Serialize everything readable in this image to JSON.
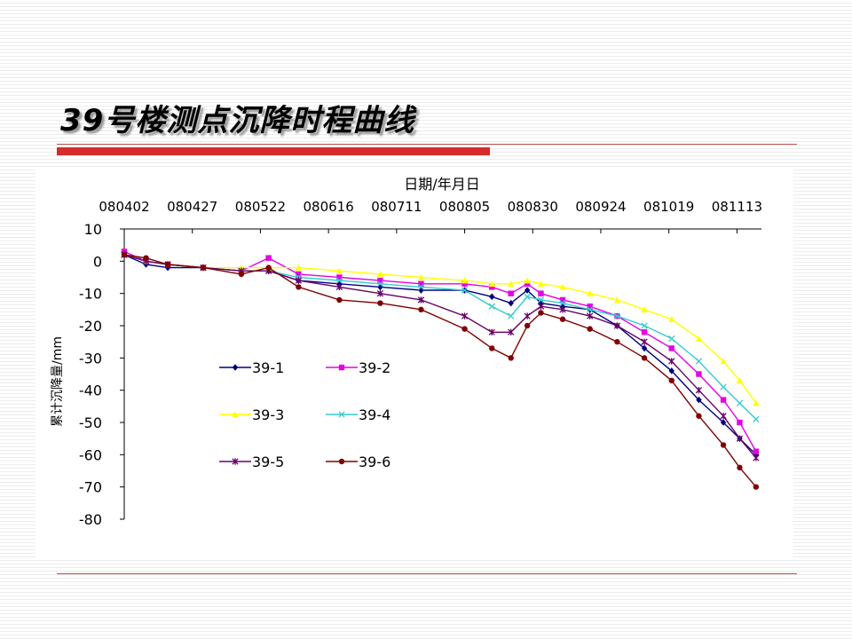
{
  "slide": {
    "title": "39号楼测点沉降时程曲线"
  },
  "chart_data": {
    "type": "line",
    "xlabel": "日期/年月日",
    "ylabel": "累计沉降量/mm",
    "x_axis_position": "top",
    "x_tick_labels": [
      "080402",
      "080427",
      "080522",
      "080616",
      "080711",
      "080805",
      "080830",
      "080924",
      "081019",
      "081113"
    ],
    "x_range": [
      "2008-04-02",
      "2008-11-22"
    ],
    "y_ticks": [
      10,
      0,
      -10,
      -20,
      -30,
      -40,
      -50,
      -60,
      -70,
      -80
    ],
    "ylim": [
      -80,
      10
    ],
    "legend_position": "inside-left",
    "series": [
      {
        "name": "39-1",
        "color": "#000080",
        "marker": "diamond",
        "points": [
          [
            "2008-04-02",
            2
          ],
          [
            "2008-04-10",
            -1
          ],
          [
            "2008-04-18",
            -2
          ],
          [
            "2008-05-01",
            -2
          ],
          [
            "2008-05-15",
            -3
          ],
          [
            "2008-05-25",
            -3
          ],
          [
            "2008-06-05",
            -6
          ],
          [
            "2008-06-20",
            -7
          ],
          [
            "2008-07-05",
            -8
          ],
          [
            "2008-07-20",
            -9
          ],
          [
            "2008-08-05",
            -9
          ],
          [
            "2008-08-15",
            -11
          ],
          [
            "2008-08-22",
            -13
          ],
          [
            "2008-08-28",
            -9
          ],
          [
            "2008-09-02",
            -13
          ],
          [
            "2008-09-10",
            -14
          ],
          [
            "2008-09-20",
            -15
          ],
          [
            "2008-09-30",
            -20
          ],
          [
            "2008-10-10",
            -27
          ],
          [
            "2008-10-20",
            -34
          ],
          [
            "2008-10-30",
            -43
          ],
          [
            "2008-11-08",
            -50
          ],
          [
            "2008-11-14",
            -55
          ],
          [
            "2008-11-20",
            -60
          ]
        ]
      },
      {
        "name": "39-2",
        "color": "#e600e6",
        "marker": "square",
        "points": [
          [
            "2008-04-02",
            3
          ],
          [
            "2008-04-10",
            0
          ],
          [
            "2008-04-18",
            -1
          ],
          [
            "2008-05-01",
            -2
          ],
          [
            "2008-05-15",
            -3
          ],
          [
            "2008-05-25",
            1
          ],
          [
            "2008-06-05",
            -4
          ],
          [
            "2008-06-20",
            -5
          ],
          [
            "2008-07-05",
            -6
          ],
          [
            "2008-07-20",
            -7
          ],
          [
            "2008-08-05",
            -7
          ],
          [
            "2008-08-15",
            -8
          ],
          [
            "2008-08-22",
            -10
          ],
          [
            "2008-08-28",
            -7
          ],
          [
            "2008-09-02",
            -10
          ],
          [
            "2008-09-10",
            -12
          ],
          [
            "2008-09-20",
            -14
          ],
          [
            "2008-09-30",
            -17
          ],
          [
            "2008-10-10",
            -22
          ],
          [
            "2008-10-20",
            -27
          ],
          [
            "2008-10-30",
            -35
          ],
          [
            "2008-11-08",
            -43
          ],
          [
            "2008-11-14",
            -50
          ],
          [
            "2008-11-20",
            -59
          ]
        ]
      },
      {
        "name": "39-3",
        "color": "#ffff00",
        "marker": "triangle",
        "points": [
          [
            "2008-04-02",
            2
          ],
          [
            "2008-04-10",
            0
          ],
          [
            "2008-04-18",
            -1
          ],
          [
            "2008-05-01",
            -2
          ],
          [
            "2008-05-15",
            -2
          ],
          [
            "2008-05-25",
            -2
          ],
          [
            "2008-06-05",
            -2
          ],
          [
            "2008-06-20",
            -3
          ],
          [
            "2008-07-05",
            -4
          ],
          [
            "2008-07-20",
            -5
          ],
          [
            "2008-08-05",
            -6
          ],
          [
            "2008-08-15",
            -7
          ],
          [
            "2008-08-22",
            -7
          ],
          [
            "2008-08-28",
            -6
          ],
          [
            "2008-09-02",
            -7
          ],
          [
            "2008-09-10",
            -8
          ],
          [
            "2008-09-20",
            -10
          ],
          [
            "2008-09-30",
            -12
          ],
          [
            "2008-10-10",
            -15
          ],
          [
            "2008-10-20",
            -18
          ],
          [
            "2008-10-30",
            -24
          ],
          [
            "2008-11-08",
            -31
          ],
          [
            "2008-11-14",
            -37
          ],
          [
            "2008-11-20",
            -44
          ]
        ]
      },
      {
        "name": "39-4",
        "color": "#33cccc",
        "marker": "x",
        "points": [
          [
            "2008-04-02",
            2
          ],
          [
            "2008-04-10",
            0
          ],
          [
            "2008-04-18",
            -1
          ],
          [
            "2008-05-01",
            -2
          ],
          [
            "2008-05-15",
            -3
          ],
          [
            "2008-05-25",
            -3
          ],
          [
            "2008-06-05",
            -5
          ],
          [
            "2008-06-20",
            -6
          ],
          [
            "2008-07-05",
            -7
          ],
          [
            "2008-07-20",
            -8
          ],
          [
            "2008-08-05",
            -9
          ],
          [
            "2008-08-15",
            -14
          ],
          [
            "2008-08-22",
            -17
          ],
          [
            "2008-08-28",
            -11
          ],
          [
            "2008-09-02",
            -12
          ],
          [
            "2008-09-10",
            -13
          ],
          [
            "2008-09-20",
            -15
          ],
          [
            "2008-09-30",
            -17
          ],
          [
            "2008-10-10",
            -20
          ],
          [
            "2008-10-20",
            -24
          ],
          [
            "2008-10-30",
            -31
          ],
          [
            "2008-11-08",
            -39
          ],
          [
            "2008-11-14",
            -44
          ],
          [
            "2008-11-20",
            -49
          ]
        ]
      },
      {
        "name": "39-5",
        "color": "#660066",
        "marker": "star",
        "points": [
          [
            "2008-04-02",
            2
          ],
          [
            "2008-04-10",
            0
          ],
          [
            "2008-04-18",
            -1
          ],
          [
            "2008-05-01",
            -2
          ],
          [
            "2008-05-15",
            -3
          ],
          [
            "2008-05-25",
            -3
          ],
          [
            "2008-06-05",
            -6
          ],
          [
            "2008-06-20",
            -8
          ],
          [
            "2008-07-05",
            -10
          ],
          [
            "2008-07-20",
            -12
          ],
          [
            "2008-08-05",
            -17
          ],
          [
            "2008-08-15",
            -22
          ],
          [
            "2008-08-22",
            -22
          ],
          [
            "2008-08-28",
            -17
          ],
          [
            "2008-09-02",
            -14
          ],
          [
            "2008-09-10",
            -15
          ],
          [
            "2008-09-20",
            -17
          ],
          [
            "2008-09-30",
            -20
          ],
          [
            "2008-10-10",
            -25
          ],
          [
            "2008-10-20",
            -31
          ],
          [
            "2008-10-30",
            -40
          ],
          [
            "2008-11-08",
            -48
          ],
          [
            "2008-11-14",
            -55
          ],
          [
            "2008-11-20",
            -61
          ]
        ]
      },
      {
        "name": "39-6",
        "color": "#800000",
        "marker": "circle",
        "points": [
          [
            "2008-04-02",
            2
          ],
          [
            "2008-04-10",
            1
          ],
          [
            "2008-04-18",
            -1
          ],
          [
            "2008-05-01",
            -2
          ],
          [
            "2008-05-15",
            -4
          ],
          [
            "2008-05-25",
            -2
          ],
          [
            "2008-06-05",
            -8
          ],
          [
            "2008-06-20",
            -12
          ],
          [
            "2008-07-05",
            -13
          ],
          [
            "2008-07-20",
            -15
          ],
          [
            "2008-08-05",
            -21
          ],
          [
            "2008-08-15",
            -27
          ],
          [
            "2008-08-22",
            -30
          ],
          [
            "2008-08-28",
            -20
          ],
          [
            "2008-09-02",
            -16
          ],
          [
            "2008-09-10",
            -18
          ],
          [
            "2008-09-20",
            -21
          ],
          [
            "2008-09-30",
            -25
          ],
          [
            "2008-10-10",
            -30
          ],
          [
            "2008-10-20",
            -37
          ],
          [
            "2008-10-30",
            -48
          ],
          [
            "2008-11-08",
            -57
          ],
          [
            "2008-11-14",
            -64
          ],
          [
            "2008-11-20",
            -70
          ]
        ]
      }
    ]
  }
}
